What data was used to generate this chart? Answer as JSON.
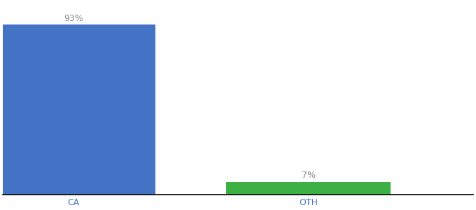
{
  "categories": [
    "CA",
    "OTH"
  ],
  "values": [
    93,
    7
  ],
  "bar_colors": [
    "#4472c4",
    "#3cb043"
  ],
  "value_labels": [
    "93%",
    "7%"
  ],
  "background_color": "#ffffff",
  "label_fontsize": 9,
  "tick_fontsize": 9,
  "label_color": "#888888",
  "tick_color": "#4472c4",
  "ylim": [
    0,
    105
  ],
  "bar_width": 0.7,
  "xlim": [
    -0.3,
    1.7
  ]
}
